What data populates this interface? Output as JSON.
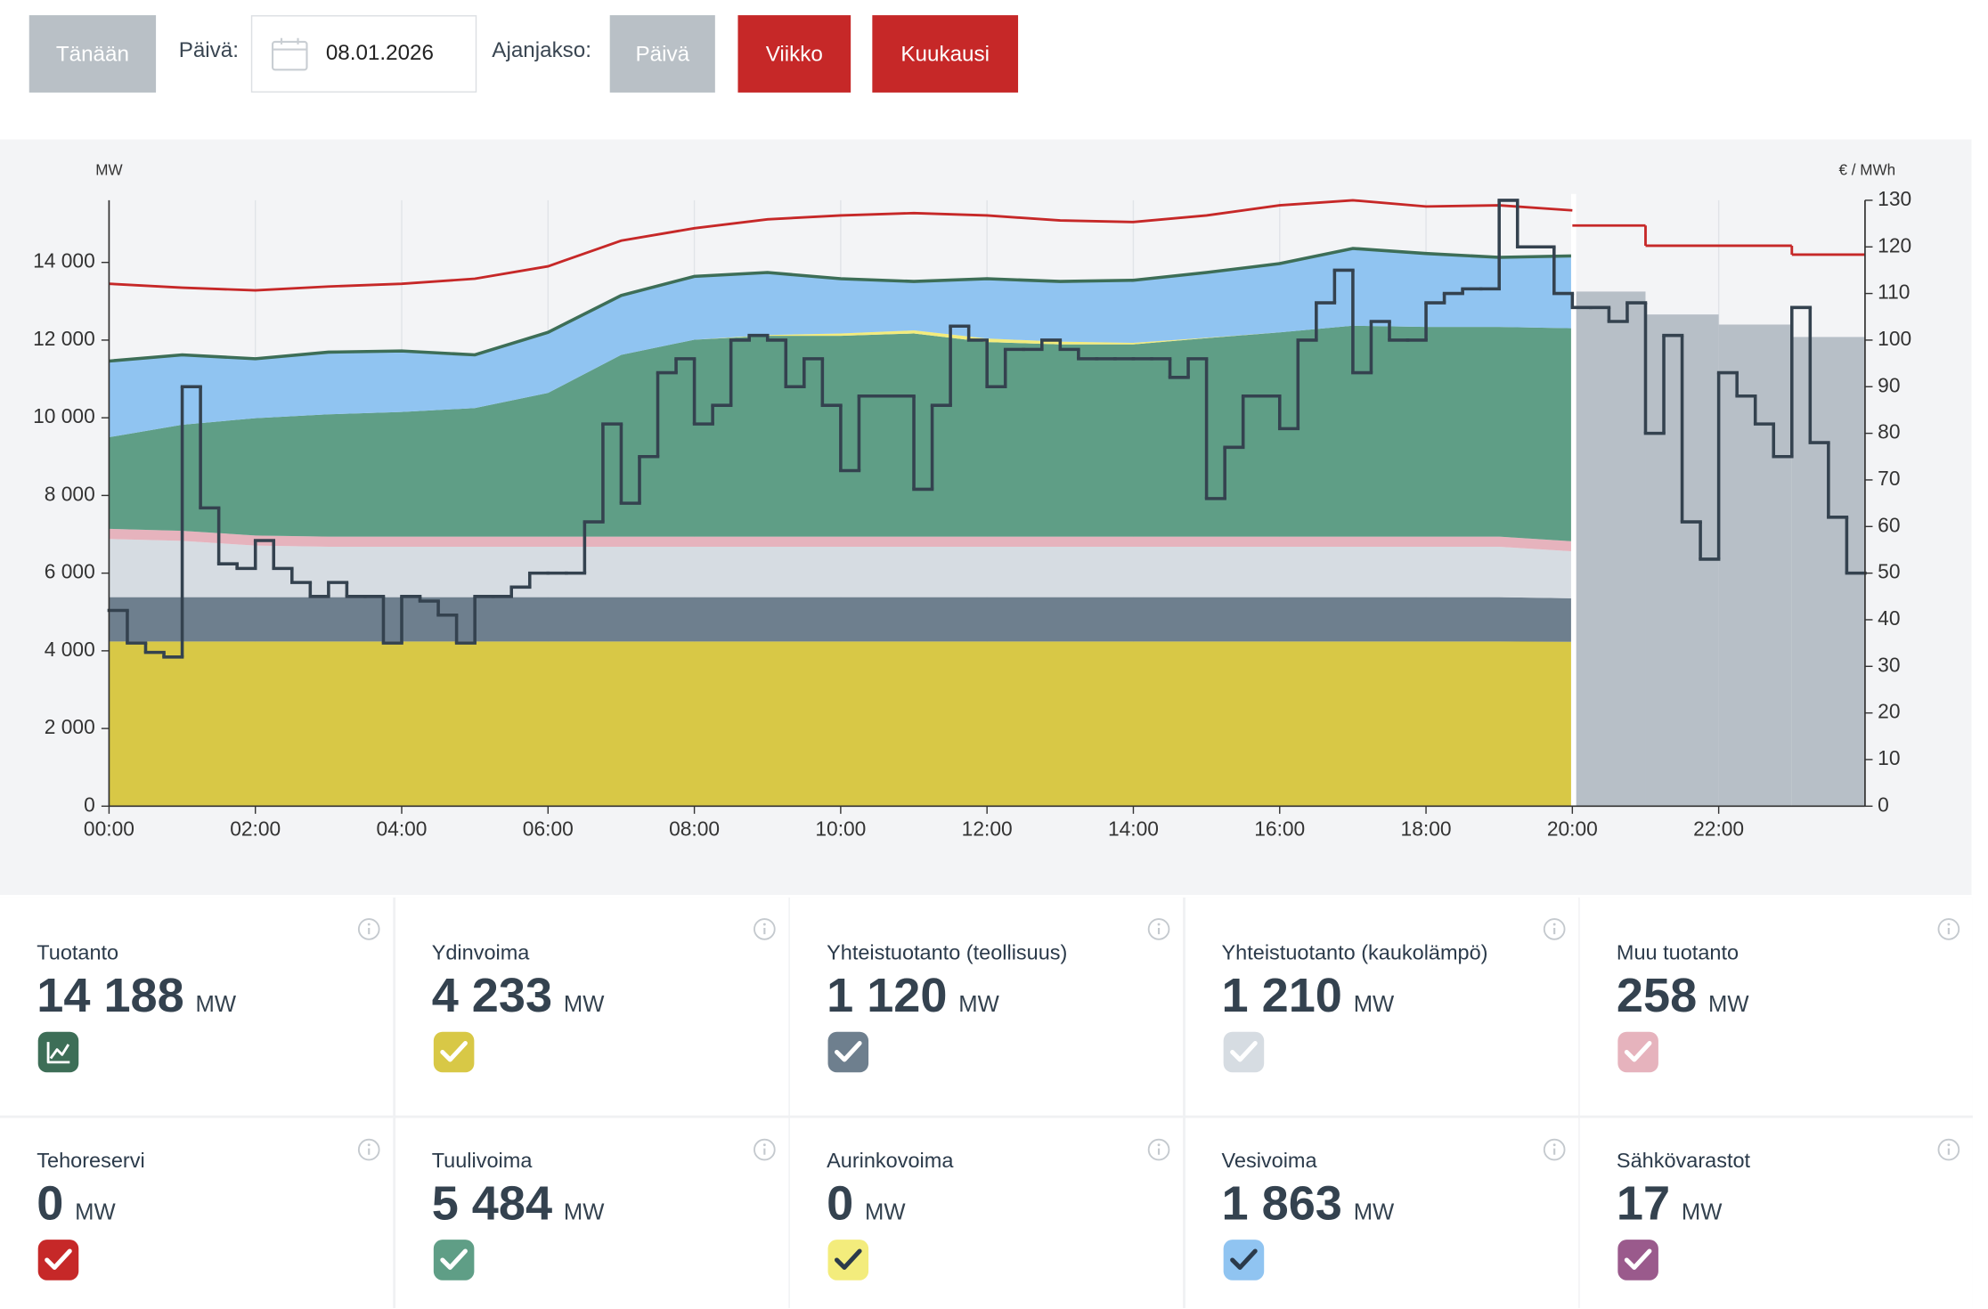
{
  "controls": {
    "today": "Tänään",
    "date_label": "Päivä:",
    "date": "08.01.2026",
    "period_label": "Ajanjakso:",
    "periods": [
      "Päivä",
      "Viikko",
      "Kuukausi"
    ]
  },
  "chart_data": {
    "type": "area",
    "stacked": true,
    "y_label": "MW",
    "y2_label": "€ / MWh",
    "grid": "x",
    "x": [
      0,
      1,
      2,
      3,
      4,
      5,
      6,
      7,
      8,
      9,
      10,
      11,
      12,
      13,
      14,
      15,
      16,
      17,
      18,
      19,
      20
    ],
    "xlim": [
      0,
      24
    ],
    "xticks": [
      {
        "value": 0,
        "label": "00:00"
      },
      {
        "value": 2,
        "label": "02:00"
      },
      {
        "value": 4,
        "label": "04:00"
      },
      {
        "value": 6,
        "label": "06:00"
      },
      {
        "value": 8,
        "label": "08:00"
      },
      {
        "value": 10,
        "label": "10:00"
      },
      {
        "value": 12,
        "label": "12:00"
      },
      {
        "value": 14,
        "label": "14:00"
      },
      {
        "value": 16,
        "label": "16:00"
      },
      {
        "value": 18,
        "label": "18:00"
      },
      {
        "value": 20,
        "label": "20:00"
      },
      {
        "value": 22,
        "label": "22:00"
      }
    ],
    "ylim": [
      0,
      15600
    ],
    "yticks": [
      0,
      {
        "value": 2000,
        "label": "2 000"
      },
      {
        "value": 4000,
        "label": "4 000"
      },
      {
        "value": 6000,
        "label": "6 000"
      },
      {
        "value": 8000,
        "label": "8 000"
      },
      {
        "value": 10000,
        "label": "10 000"
      },
      {
        "value": 12000,
        "label": "12 000"
      },
      {
        "value": 14000,
        "label": "14 000"
      }
    ],
    "y2lim": [
      0,
      130
    ],
    "y2ticks": [
      0,
      10,
      20,
      30,
      40,
      50,
      60,
      70,
      80,
      90,
      100,
      110,
      120,
      130
    ],
    "outline_color": "#3d6e57",
    "series": [
      {
        "name": "Ydinvoima",
        "color": "#d8c846",
        "values": [
          4240,
          4240,
          4240,
          4240,
          4240,
          4240,
          4240,
          4240,
          4240,
          4240,
          4240,
          4240,
          4240,
          4240,
          4240,
          4240,
          4240,
          4240,
          4240,
          4240,
          4233
        ]
      },
      {
        "name": "Yhteistuotanto (teollisuus)",
        "color": "#6e7f8e",
        "values": [
          1140,
          1140,
          1140,
          1140,
          1140,
          1140,
          1140,
          1140,
          1140,
          1140,
          1140,
          1140,
          1140,
          1140,
          1140,
          1140,
          1140,
          1140,
          1140,
          1140,
          1120
        ]
      },
      {
        "name": "Yhteistuotanto (kaukolämpö)",
        "color": "#d6dce2",
        "values": [
          1500,
          1450,
          1330,
          1300,
          1300,
          1300,
          1300,
          1300,
          1300,
          1300,
          1300,
          1300,
          1300,
          1300,
          1300,
          1300,
          1300,
          1300,
          1300,
          1300,
          1210
        ]
      },
      {
        "name": "Muu tuotanto",
        "color": "#e6b3bd",
        "values": [
          260,
          260,
          260,
          260,
          260,
          260,
          260,
          260,
          260,
          260,
          260,
          260,
          260,
          260,
          260,
          260,
          260,
          260,
          260,
          260,
          258
        ]
      },
      {
        "name": "Tuulivoima",
        "color": "#5f9e86",
        "values": [
          2360,
          2730,
          3020,
          3150,
          3210,
          3310,
          3700,
          4680,
          5070,
          5170,
          5170,
          5230,
          5010,
          4950,
          4950,
          5110,
          5260,
          5430,
          5400,
          5400,
          5484
        ]
      },
      {
        "name": "Aurinkovoima",
        "color": "#f3ec7c",
        "values": [
          0,
          0,
          0,
          0,
          0,
          0,
          0,
          0,
          0,
          20,
          60,
          80,
          90,
          70,
          40,
          10,
          0,
          0,
          0,
          0,
          0
        ]
      },
      {
        "name": "Vesivoima",
        "color": "#90c4f1",
        "values": [
          1960,
          1800,
          1530,
          1600,
          1570,
          1370,
          1560,
          1530,
          1630,
          1610,
          1410,
          1260,
          1540,
          1550,
          1610,
          1680,
          1770,
          1990,
          1890,
          1790,
          1863
        ]
      }
    ],
    "consumption": {
      "color": "#c62828",
      "values": [
        13450,
        13350,
        13280,
        13380,
        13450,
        13580,
        13900,
        14560,
        14880,
        15110,
        15210,
        15270,
        15210,
        15080,
        15040,
        15210,
        15470,
        15600,
        15440,
        15470,
        15340
      ],
      "forecast_x": [
        20,
        21,
        23
      ],
      "forecast_values": [
        14950,
        14430,
        14200
      ]
    },
    "production_forecast": {
      "color": "#b7bfc7",
      "x": [
        20,
        21,
        22,
        23
      ],
      "values": [
        13250,
        12660,
        12400,
        12080
      ]
    },
    "price": {
      "axis": "y2",
      "color": "#34424f",
      "x": [
        0,
        0.25,
        0.5,
        0.75,
        1,
        1.25,
        1.5,
        1.75,
        2,
        2.25,
        2.5,
        2.75,
        3,
        3.25,
        3.5,
        3.75,
        4,
        4.25,
        4.5,
        4.75,
        5,
        5.25,
        5.5,
        5.75,
        6,
        6.25,
        6.5,
        6.75,
        7,
        7.25,
        7.5,
        7.75,
        8,
        8.25,
        8.5,
        8.75,
        9,
        9.25,
        9.5,
        9.75,
        10,
        10.25,
        10.5,
        10.75,
        11,
        11.25,
        11.5,
        11.75,
        12,
        12.25,
        12.5,
        12.75,
        13,
        13.25,
        13.5,
        13.75,
        14,
        14.25,
        14.5,
        14.75,
        15,
        15.25,
        15.5,
        15.75,
        16,
        16.25,
        16.5,
        16.75,
        17,
        17.25,
        17.5,
        17.75,
        18,
        18.25,
        18.5,
        18.75,
        19,
        19.25,
        19.5,
        19.75,
        20,
        20.25,
        20.5,
        20.75,
        21,
        21.25,
        21.5,
        21.75,
        22,
        22.25,
        22.5,
        22.75,
        23,
        23.25,
        23.5,
        23.75
      ],
      "values": [
        42,
        35,
        33,
        32,
        90,
        64,
        52,
        51,
        57,
        51,
        48,
        45,
        48,
        45,
        45,
        35,
        45,
        44,
        41,
        35,
        45,
        45,
        47,
        50,
        50,
        50,
        61,
        82,
        65,
        75,
        93,
        96,
        82,
        86,
        100,
        101,
        100,
        90,
        96,
        86,
        72,
        88,
        88,
        88,
        68,
        86,
        103,
        100,
        90,
        98,
        98,
        100,
        98,
        96,
        96,
        96,
        96,
        96,
        92,
        96,
        66,
        77,
        88,
        88,
        81,
        100,
        108,
        115,
        93,
        104,
        100,
        100,
        108,
        110,
        111,
        111,
        130,
        120,
        120,
        110,
        107,
        107,
        104,
        108,
        80,
        101,
        61,
        53,
        93,
        88,
        82,
        75,
        107,
        78,
        62,
        50
      ]
    }
  },
  "cards": [
    {
      "label": "Tuotanto",
      "value": "14 188",
      "unit": "MW",
      "color": "#3d6e57",
      "check_color": "#ffffff"
    },
    {
      "label": "Ydinvoima",
      "value": "4 233",
      "unit": "MW",
      "color": "#d8c846",
      "check_color": "#ffffff"
    },
    {
      "label": "Yhteistuotanto (teollisuus)",
      "value": "1 120",
      "unit": "MW",
      "color": "#6e7f8e",
      "check_color": "#ffffff"
    },
    {
      "label": "Yhteistuotanto (kaukolämpö)",
      "value": "1 210",
      "unit": "MW",
      "color": "#d6dce2",
      "check_color": "#ffffff"
    },
    {
      "label": "Muu tuotanto",
      "value": "258",
      "unit": "MW",
      "color": "#e6b3bd",
      "check_color": "#ffffff"
    },
    {
      "label": "Tehoreservi",
      "value": "0",
      "unit": "MW",
      "color": "#c62828",
      "check_color": "#ffffff"
    },
    {
      "label": "Tuulivoima",
      "value": "5 484",
      "unit": "MW",
      "color": "#5f9e86",
      "check_color": "#ffffff"
    },
    {
      "label": "Aurinkovoima",
      "value": "0",
      "unit": "MW",
      "color": "#f3ec7c",
      "check_color": "#2b3a4a"
    },
    {
      "label": "Vesivoima",
      "value": "1 863",
      "unit": "MW",
      "color": "#90c4f1",
      "check_color": "#2b3a4a"
    },
    {
      "label": "Sähkövarastot",
      "value": "17",
      "unit": "MW",
      "color": "#9a5a8c",
      "check_color": "#ffffff"
    }
  ]
}
